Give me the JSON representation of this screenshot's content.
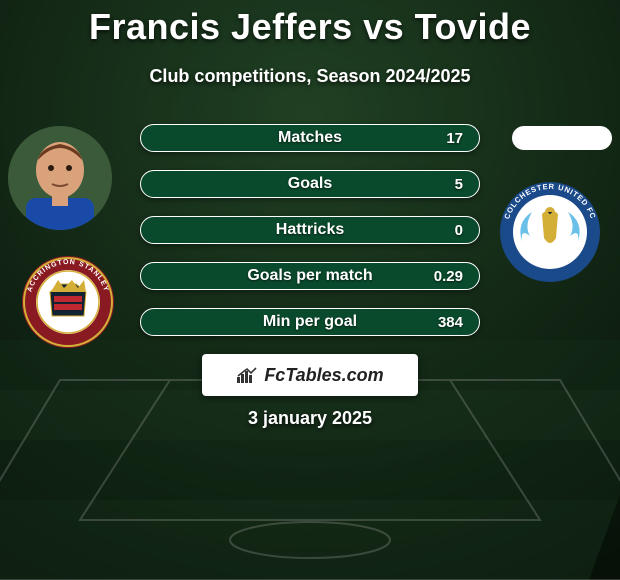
{
  "title": "Francis Jeffers vs Tovide",
  "subtitle": "Club competitions, Season 2024/2025",
  "date": "3 january 2025",
  "brand_text": "FcTables.com",
  "background": {
    "top_color": "#0f2a18",
    "bottom_color": "#2d5a32",
    "grass_stripes": [
      "#1e3d22",
      "#2a4f2d"
    ]
  },
  "bars": {
    "fill_color": "#0a4a2c",
    "border_color": "#ffffff",
    "label_color": "#ffffff",
    "label_fontsize": 16,
    "value_fontsize": 15,
    "height": 28,
    "gap": 18,
    "items": [
      {
        "label": "Matches",
        "left_value": "",
        "right_value": "17"
      },
      {
        "label": "Goals",
        "left_value": "",
        "right_value": "5"
      },
      {
        "label": "Hattricks",
        "left_value": "",
        "right_value": "0"
      },
      {
        "label": "Goals per match",
        "left_value": "",
        "right_value": "0.29"
      },
      {
        "label": "Min per goal",
        "left_value": "",
        "right_value": "384"
      }
    ]
  },
  "brand_box": {
    "bg_color": "#ffffff",
    "text_color": "#222222",
    "icon_color": "#333333"
  },
  "player_left": {
    "name": "Francis Jeffers",
    "skin": "#d9a27a",
    "hair": "#6b3a1f",
    "shirt": "#1a4aa8"
  },
  "player_right": {
    "name": "Tovide",
    "placeholder_bg": "#ffffff"
  },
  "crest_left": {
    "name": "Accrington Stanley",
    "outer": "#8a1a22",
    "ring": "#d4af37",
    "center": "#ffffff",
    "text": "ACCRINGTON STANLEY"
  },
  "crest_right": {
    "name": "Colchester United FC",
    "outer": "#1a4a8a",
    "inner": "#ffffff",
    "wings": "#6ac0e8",
    "text": "COLCHESTER UNITED FC"
  }
}
